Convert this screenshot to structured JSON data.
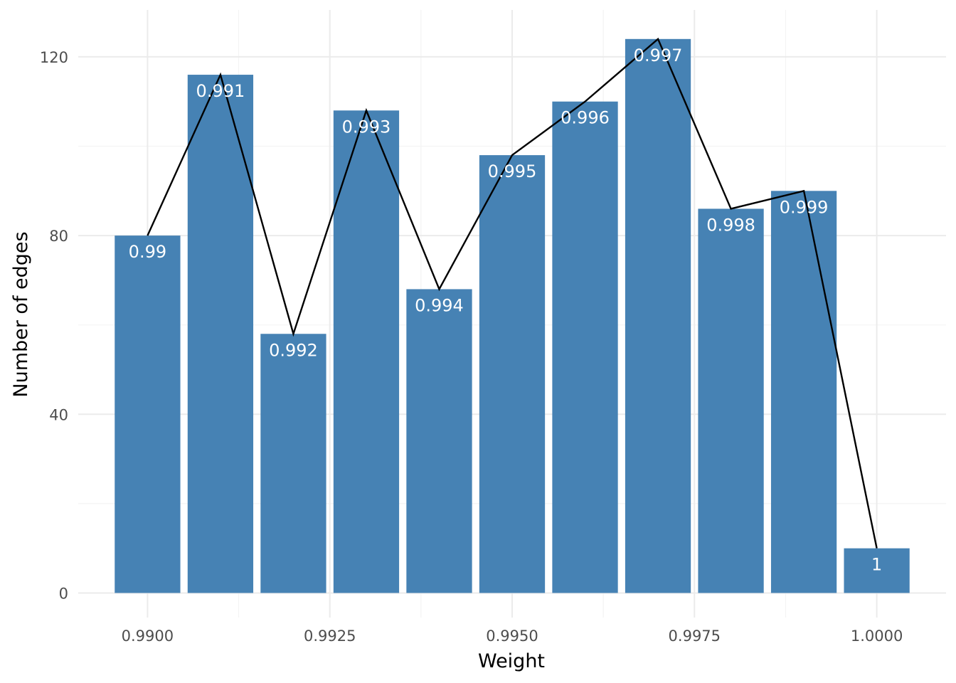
{
  "chart_data": {
    "type": "bar",
    "xlabel": "Weight",
    "ylabel": "Number of edges",
    "x": [
      0.99,
      0.991,
      0.992,
      0.993,
      0.994,
      0.995,
      0.996,
      0.997,
      0.998,
      0.999,
      1.0
    ],
    "values": [
      80,
      116,
      58,
      108,
      68,
      98,
      110,
      124,
      86,
      90,
      10
    ],
    "bar_labels": [
      "0.99",
      "0.991",
      "0.992",
      "0.993",
      "0.994",
      "0.995",
      "0.996",
      "0.997",
      "0.998",
      "0.999",
      "1"
    ],
    "xlim": [
      0.98905,
      1.00095
    ],
    "ylim": [
      -5.5,
      130.5
    ],
    "x_ticks": [
      0.99,
      0.9925,
      0.995,
      0.9975,
      1.0
    ],
    "x_tick_labels": [
      "0.9900",
      "0.9925",
      "0.9950",
      "0.9975",
      "1.0000"
    ],
    "y_ticks": [
      0,
      40,
      80,
      120
    ],
    "y_tick_labels": [
      "0",
      "40",
      "80",
      "120"
    ],
    "bar_color": "#4682b4",
    "line_color": "#000000",
    "overlay_line": true,
    "grid": true,
    "legend": "none"
  }
}
